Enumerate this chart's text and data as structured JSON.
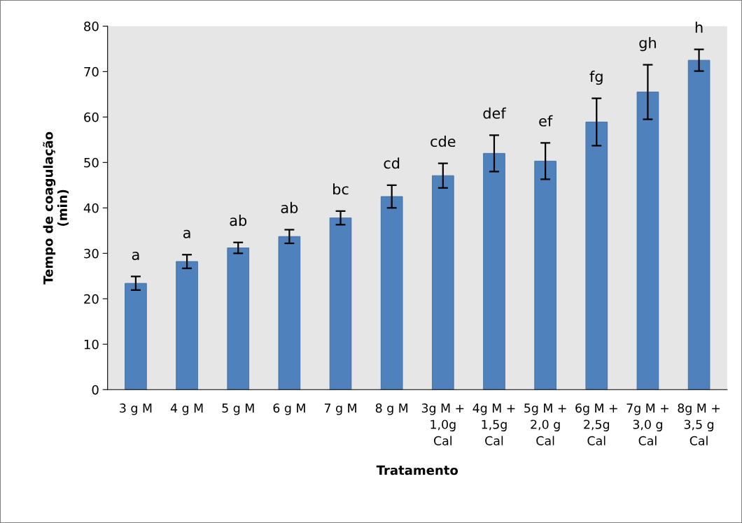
{
  "chart_data": {
    "type": "bar",
    "xlabel": "Tratamento",
    "ylabel": "Tempo de coagulação\n(min)",
    "categories": [
      "3 g M",
      "4 g M",
      "5 g M",
      "6 g M",
      "7 g M",
      "8 g M",
      "3g M +\n1,0g\nCal",
      "4g M +\n1,5g\nCal",
      "5g M +\n2,0 g\nCal",
      "6g M +\n2,5g\nCal",
      "7g M +\n3,0 g\nCal",
      "8g M +\n3,5 g\nCal"
    ],
    "values": [
      23.4,
      28.2,
      31.2,
      33.7,
      37.8,
      42.5,
      47.1,
      52.0,
      50.3,
      58.9,
      65.5,
      72.5
    ],
    "errors": [
      1.5,
      1.5,
      1.2,
      1.5,
      1.5,
      2.5,
      2.7,
      4.0,
      4.0,
      5.2,
      6.0,
      2.4
    ],
    "color": "#4f81bd",
    "ylim": [
      0,
      80
    ],
    "yticks": [
      0,
      10,
      20,
      30,
      40,
      50,
      60,
      70,
      80
    ],
    "grid": false,
    "legend": false,
    "annotations": [
      {
        "text": "a",
        "x": "3 g M",
        "y": 23.4
      },
      {
        "text": "a",
        "x": "4 g M",
        "y": 28.2
      },
      {
        "text": "ab",
        "x": "5 g M",
        "y": 31.2
      },
      {
        "text": "ab",
        "x": "6 g M",
        "y": 33.7
      },
      {
        "text": "bc",
        "x": "7 g M",
        "y": 37.8
      },
      {
        "text": "cd",
        "x": "8 g M",
        "y": 42.5
      },
      {
        "text": "cde",
        "x": "3g M +\n1,0g\nCal",
        "y": 47.1
      },
      {
        "text": "def",
        "x": "4g M +\n1,5g\nCal",
        "y": 52.0
      },
      {
        "text": "ef",
        "x": "5g M +\n2,0 g\nCal",
        "y": 50.3
      },
      {
        "text": "fg",
        "x": "6g M +\n2,5g\nCal",
        "y": 58.9
      },
      {
        "text": "gh",
        "x": "7g M +\n3,0 g\nCal",
        "y": 65.5
      },
      {
        "text": "h",
        "x": "8g M +\n3,5 g\nCal",
        "y": 72.5
      }
    ]
  }
}
